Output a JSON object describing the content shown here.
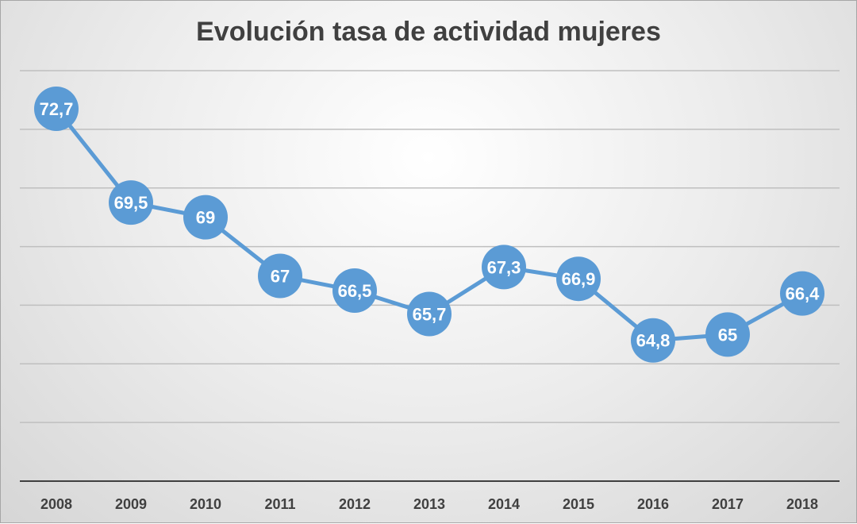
{
  "chart_data": {
    "type": "line",
    "title": "Evolución tasa de actividad mujeres",
    "categories": [
      "2008",
      "2009",
      "2010",
      "2011",
      "2012",
      "2013",
      "2014",
      "2015",
      "2016",
      "2017",
      "2018"
    ],
    "series": [
      {
        "values": [
          72.7,
          69.5,
          69,
          67,
          66.5,
          65.7,
          67.3,
          66.9,
          64.8,
          65,
          66.4
        ]
      }
    ],
    "data_labels": [
      "72,7",
      "69,5",
      "69",
      "67",
      "66,5",
      "65,7",
      "67,3",
      "66,9",
      "64,8",
      "65",
      "66,4"
    ],
    "ylim": [
      60,
      74
    ],
    "ytick_step": 2,
    "y_tick_labels_shown": false,
    "grid": true,
    "legend": "none",
    "colors": {
      "series": "#5b9bd5",
      "grid": "#bfbfbf",
      "axis": "#404040",
      "label": "#ffffff"
    }
  }
}
